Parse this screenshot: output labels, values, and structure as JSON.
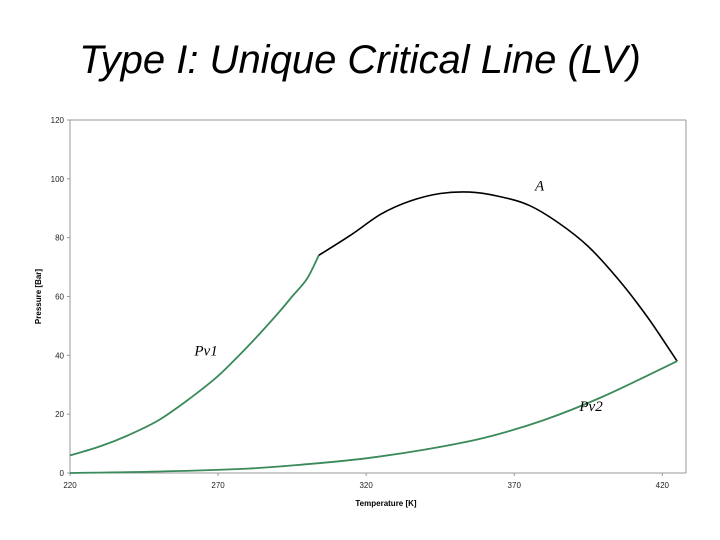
{
  "slide": {
    "title": "Type I: Unique Critical Line (LV)"
  },
  "chart_data": {
    "type": "line",
    "xlabel": "Temperature [K]",
    "ylabel": "Pressure [Bar]",
    "xlim": [
      220,
      428
    ],
    "ylim": [
      0,
      120
    ],
    "xticks": [
      220,
      270,
      320,
      370,
      420
    ],
    "yticks": [
      0,
      20,
      40,
      60,
      80,
      100,
      120
    ],
    "grid": false,
    "colors": {
      "vapor_pressure": "#3a8a5a",
      "critical_line": "#000000",
      "axis": "#999999"
    },
    "series": [
      {
        "role": "vapor_pressure",
        "x": [
          220,
          230,
          240,
          250,
          260,
          270,
          280,
          290,
          295,
          300,
          304
        ],
        "y": [
          6,
          9,
          13,
          18,
          25,
          33,
          43,
          54,
          60,
          66,
          74
        ]
      },
      {
        "role": "critical_line",
        "x": [
          304,
          315,
          325,
          335,
          345,
          355,
          365,
          375,
          385,
          395,
          405,
          415,
          425
        ],
        "y": [
          74,
          81,
          88,
          92.5,
          95,
          95.5,
          94,
          91,
          85,
          77,
          66,
          53,
          38
        ]
      },
      {
        "role": "vapor_pressure",
        "x": [
          220,
          250,
          280,
          300,
          320,
          340,
          360,
          380,
          400,
          425
        ],
        "y": [
          0,
          0.5,
          1.5,
          3,
          5,
          8,
          12,
          18,
          26,
          38
        ]
      }
    ],
    "annotations": [
      {
        "text": "A",
        "x": 377,
        "y": 96
      },
      {
        "text": "Pv1",
        "x": 262,
        "y": 40
      },
      {
        "text": "Pv2",
        "x": 392,
        "y": 21
      }
    ]
  }
}
